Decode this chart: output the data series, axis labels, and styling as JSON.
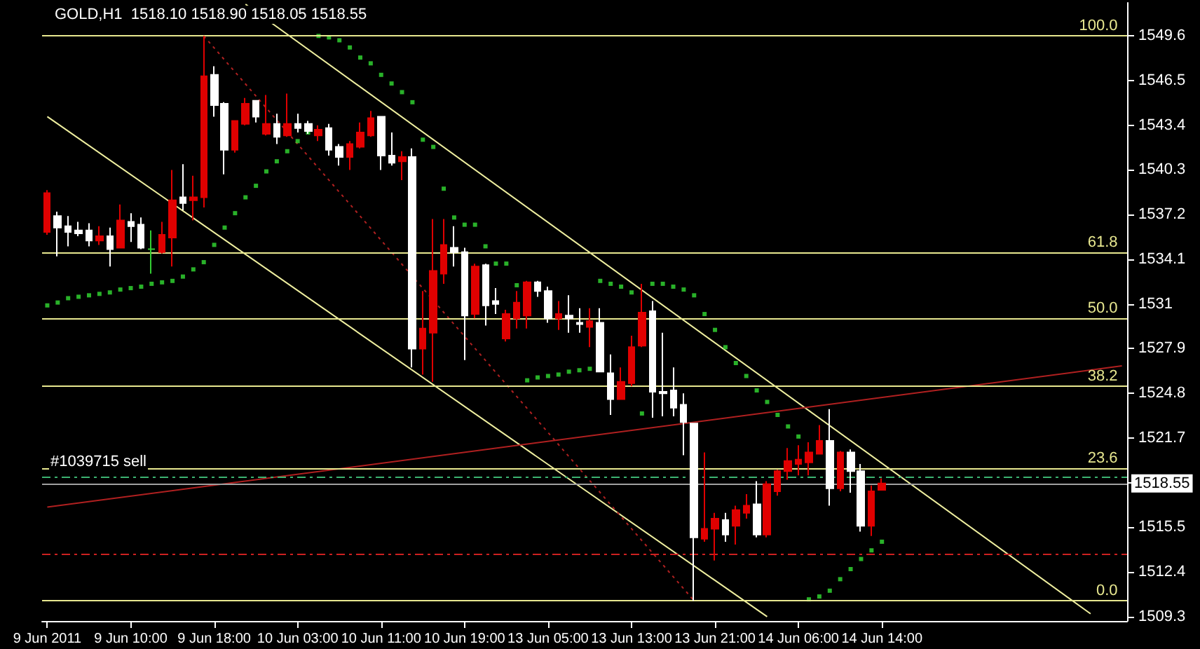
{
  "chart_data": {
    "type": "candlestick",
    "title": "GOLD,H1  1518.10 1518.90 1518.05 1518.55",
    "categories": [
      "9 Jun 2011",
      null,
      null,
      null,
      null,
      null,
      null,
      null,
      "9 Jun 10:00",
      null,
      null,
      null,
      null,
      null,
      null,
      null,
      "9 Jun 18:00",
      null,
      null,
      null,
      null,
      null,
      null,
      null,
      "10 Jun 03:00",
      null,
      null,
      null,
      null,
      null,
      null,
      null,
      "10 Jun 11:00",
      null,
      null,
      null,
      null,
      null,
      null,
      null,
      "10 Jun 19:00",
      null,
      null,
      null,
      null,
      null,
      null,
      null,
      "13 Jun 05:00",
      null,
      null,
      null,
      null,
      null,
      null,
      null,
      "13 Jun 13:00",
      null,
      null,
      null,
      null,
      null,
      null,
      null,
      "13 Jun 21:00",
      null,
      null,
      null,
      null,
      null,
      null,
      null,
      "14 Jun 06:00",
      null,
      null,
      null,
      null,
      null,
      null,
      null,
      "14 Jun 14:00",
      null,
      null,
      null,
      null,
      null,
      null,
      null,
      null,
      null,
      null,
      null,
      null,
      null,
      null,
      null,
      null,
      null,
      null,
      null,
      null,
      null,
      null,
      null
    ],
    "ohlc": [
      [
        1536.0,
        1538.9,
        1535.8,
        1538.7
      ],
      [
        1537.1,
        1537.4,
        1534.3,
        1536.3
      ],
      [
        1536.4,
        1537.1,
        1535.0,
        1536.0
      ],
      [
        1536.1,
        1536.7,
        1535.7,
        1535.9
      ],
      [
        1536.1,
        1536.6,
        1535.0,
        1535.4
      ],
      [
        1535.4,
        1536.4,
        1535.1,
        1535.7
      ],
      [
        1535.7,
        1536.3,
        1533.6,
        1534.8
      ],
      [
        1534.9,
        1537.9,
        1534.9,
        1536.8
      ],
      [
        1536.7,
        1537.3,
        1535.3,
        1536.4
      ],
      [
        1536.5,
        1537.0,
        1534.8,
        1534.9
      ],
      [
        1534.8,
        1536.1,
        1533.1,
        1534.8
      ],
      [
        1534.6,
        1536.7,
        1534.5,
        1535.8
      ],
      [
        1535.6,
        1540.3,
        1533.6,
        1538.2
      ],
      [
        1538.4,
        1540.7,
        1537.5,
        1538.0
      ],
      [
        1538.2,
        1539.9,
        1536.8,
        1538.4
      ],
      [
        1538.4,
        1549.6,
        1537.7,
        1546.8
      ],
      [
        1546.9,
        1547.5,
        1544.0,
        1544.8
      ],
      [
        1544.9,
        1545.0,
        1540.0,
        1541.7
      ],
      [
        1541.7,
        1543.7,
        1541.5,
        1543.7
      ],
      [
        1543.5,
        1545.3,
        1543.4,
        1544.9
      ],
      [
        1545.1,
        1545.1,
        1543.6,
        1544.0
      ],
      [
        1542.8,
        1545.5,
        1542.7,
        1543.5
      ],
      [
        1543.5,
        1544.2,
        1542.1,
        1542.6
      ],
      [
        1542.7,
        1545.6,
        1542.6,
        1543.5
      ],
      [
        1543.5,
        1544.2,
        1542.9,
        1543.2
      ],
      [
        1543.5,
        1543.7,
        1542.8,
        1543.0
      ],
      [
        1542.7,
        1543.4,
        1542.3,
        1543.1
      ],
      [
        1543.2,
        1543.5,
        1541.3,
        1541.7
      ],
      [
        1541.9,
        1542.1,
        1540.6,
        1541.2
      ],
      [
        1541.2,
        1542.3,
        1540.3,
        1542.1
      ],
      [
        1541.9,
        1543.6,
        1541.8,
        1542.9
      ],
      [
        1542.7,
        1544.4,
        1542.6,
        1543.9
      ],
      [
        1544.0,
        1544.0,
        1540.3,
        1541.3
      ],
      [
        1541.3,
        1542.9,
        1540.6,
        1540.8
      ],
      [
        1540.9,
        1541.6,
        1539.6,
        1541.2
      ],
      [
        1541.2,
        1541.8,
        1526.6,
        1527.9
      ],
      [
        1527.9,
        1531.9,
        1526.1,
        1529.3
      ],
      [
        1529.0,
        1536.9,
        1525.6,
        1533.3
      ],
      [
        1533.1,
        1536.9,
        1532.4,
        1535.1
      ],
      [
        1534.9,
        1536.4,
        1533.6,
        1534.6
      ],
      [
        1534.6,
        1534.9,
        1527.1,
        1530.2
      ],
      [
        1530.3,
        1533.8,
        1530.0,
        1533.6
      ],
      [
        1533.7,
        1533.8,
        1529.5,
        1530.9
      ],
      [
        1531.2,
        1532.1,
        1530.3,
        1531.0
      ],
      [
        1528.6,
        1530.6,
        1528.4,
        1530.3
      ],
      [
        1530.0,
        1531.9,
        1529.3,
        1531.1
      ],
      [
        1530.2,
        1532.6,
        1529.3,
        1532.5
      ],
      [
        1532.5,
        1532.6,
        1531.5,
        1531.9
      ],
      [
        1531.9,
        1532.2,
        1529.7,
        1530.0
      ],
      [
        1530.0,
        1531.2,
        1529.2,
        1530.3
      ],
      [
        1530.2,
        1531.6,
        1529.0,
        1530.0
      ],
      [
        1529.7,
        1530.7,
        1529.0,
        1529.6
      ],
      [
        1529.4,
        1530.7,
        1528.0,
        1529.8
      ],
      [
        1529.7,
        1530.7,
        1526.3,
        1526.3
      ],
      [
        1526.2,
        1527.5,
        1523.3,
        1524.4
      ],
      [
        1524.4,
        1526.6,
        1524.4,
        1525.6
      ],
      [
        1525.5,
        1528.8,
        1525.3,
        1528.0
      ],
      [
        1528.1,
        1532.4,
        1528.0,
        1530.4
      ],
      [
        1530.5,
        1531.2,
        1523.1,
        1524.9
      ],
      [
        1524.9,
        1529.0,
        1523.2,
        1524.8
      ],
      [
        1525.0,
        1526.6,
        1523.2,
        1523.8
      ],
      [
        1524.0,
        1524.8,
        1520.5,
        1522.8
      ],
      [
        1522.7,
        1522.7,
        1510.4,
        1514.8
      ],
      [
        1514.7,
        1520.7,
        1514.5,
        1515.4
      ],
      [
        1515.4,
        1516.5,
        1513.2,
        1516.1
      ],
      [
        1516.0,
        1516.5,
        1514.5,
        1515.0
      ],
      [
        1515.6,
        1517.0,
        1514.3,
        1516.7
      ],
      [
        1516.5,
        1517.8,
        1516.1,
        1517.0
      ],
      [
        1517.1,
        1518.7,
        1514.8,
        1515.0
      ],
      [
        1515.0,
        1518.7,
        1514.8,
        1518.5
      ],
      [
        1518.0,
        1519.5,
        1517.7,
        1519.4
      ],
      [
        1519.4,
        1521.0,
        1518.8,
        1520.1
      ],
      [
        1519.9,
        1521.2,
        1519.1,
        1520.2
      ],
      [
        1520.0,
        1521.4,
        1519.1,
        1520.7
      ],
      [
        1520.6,
        1522.6,
        1520.6,
        1521.5
      ],
      [
        1521.5,
        1523.7,
        1517.0,
        1518.2
      ],
      [
        1518.2,
        1520.8,
        1518.0,
        1520.7
      ],
      [
        1520.7,
        1520.9,
        1517.9,
        1519.4
      ],
      [
        1519.4,
        1519.9,
        1515.2,
        1515.6
      ],
      [
        1515.6,
        1518.4,
        1514.9,
        1518.0
      ],
      [
        1518.1,
        1518.9,
        1518.05,
        1518.55
      ],
      null,
      null,
      null,
      null,
      null,
      null,
      null,
      null,
      null,
      null,
      null,
      null,
      null,
      null,
      null,
      null,
      null,
      null,
      null,
      null,
      null,
      null,
      null
    ],
    "colors": [
      "#e00000",
      "#ffffff",
      "#ffffff",
      "#ffffff",
      "#ffffff",
      "#e00000",
      "#ffffff",
      "#e00000",
      "#ffffff",
      "#ffffff",
      "#33cc33",
      "#e00000",
      "#e00000",
      "#ffffff",
      "#e00000",
      "#e00000",
      "#ffffff",
      "#ffffff",
      "#e00000",
      "#e00000",
      "#ffffff",
      "#e00000",
      "#ffffff",
      "#e00000",
      "#ffffff",
      "#ffffff",
      "#e00000",
      "#ffffff",
      "#ffffff",
      "#e00000",
      "#e00000",
      "#e00000",
      "#ffffff",
      "#ffffff",
      "#e00000",
      "#ffffff",
      "#e00000",
      "#e00000",
      "#e00000",
      "#ffffff",
      "#ffffff",
      "#e00000",
      "#ffffff",
      "#ffffff",
      "#e00000",
      "#e00000",
      "#e00000",
      "#ffffff",
      "#ffffff",
      "#e00000",
      "#ffffff",
      "#ffffff",
      "#e00000",
      "#ffffff",
      "#ffffff",
      "#e00000",
      "#e00000",
      "#e00000",
      "#ffffff",
      "#ffffff",
      "#ffffff",
      "#ffffff",
      "#ffffff",
      "#e00000",
      "#e00000",
      "#ffffff",
      "#e00000",
      "#e00000",
      "#ffffff",
      "#e00000",
      "#e00000",
      "#e00000",
      "#e00000",
      "#e00000",
      "#e00000",
      "#ffffff",
      "#e00000",
      "#ffffff",
      "#ffffff",
      "#e00000",
      "#e00000",
      null,
      null,
      null,
      null,
      null,
      null,
      null,
      null,
      null,
      null,
      null,
      null,
      null,
      null,
      null,
      null,
      null,
      null,
      null,
      null,
      null,
      null,
      null
    ],
    "series": [
      {
        "type": "scatter",
        "color": "#33dd33",
        "marker": "square",
        "values": [
          1530.9,
          1531.1,
          1531.4,
          1531.5,
          1531.6,
          1531.7,
          1531.8,
          1532.0,
          1532.1,
          1532.2,
          1532.4,
          1532.5,
          1532.6,
          1532.9,
          1533.4,
          1533.9,
          1535.1,
          1536.3,
          1537.3,
          1538.4,
          1539.2,
          1540.2,
          1540.9,
          1541.6,
          1542.3,
          1542.9,
          1549.6,
          1549.5,
          1549.3,
          1548.8,
          1548.1,
          1547.7,
          1546.9,
          1546.3,
          1545.7,
          1545.0,
          1542.4,
          1541.9,
          1539.0,
          1537.0,
          1536.5,
          1536.5,
          1535.0,
          1533.8,
          1533.8,
          1532.3,
          1525.7,
          1525.9,
          1526.0,
          1526.1,
          1526.3,
          1526.4,
          1526.5,
          1532.6,
          1532.4,
          1532.2,
          1531.8,
          1523.4,
          1532.4,
          1532.4,
          1532.2,
          1532.0,
          1531.6,
          1530.3,
          1529.2,
          1528.0,
          1526.9,
          1526.0,
          1525.0,
          1524.2,
          1523.3,
          1522.5,
          1521.8,
          1510.5,
          1510.7,
          1511.1,
          1511.9,
          1512.6,
          1513.3,
          1513.9,
          1514.5,
          null,
          null,
          null,
          null,
          null,
          null,
          null,
          null,
          null,
          null,
          null,
          null,
          null,
          null,
          null,
          null,
          null,
          null,
          null,
          null,
          null,
          null,
          null
        ]
      },
      {
        "type": "line",
        "color": "#f0f0a0",
        "line_style": "solid",
        "values": [
          null,
          null,
          null,
          null,
          null,
          null,
          null,
          null,
          null,
          null,
          null,
          null,
          null,
          null,
          null,
          null,
          null,
          null,
          null,
          1551.8,
          null,
          null,
          null,
          null,
          null,
          null,
          null,
          null,
          null,
          null,
          null,
          null,
          null,
          null,
          null,
          null,
          null,
          null,
          null,
          null,
          null,
          null,
          null,
          null,
          null,
          null,
          null,
          null,
          null,
          null,
          null,
          null,
          null,
          null,
          null,
          null,
          null,
          null,
          null,
          null,
          null,
          null,
          null,
          null,
          null,
          null,
          null,
          null,
          null,
          null,
          null,
          null,
          null,
          null,
          null,
          null,
          null,
          null,
          null,
          null,
          null,
          null,
          null,
          null,
          null,
          null,
          null,
          null,
          null,
          null,
          null,
          null,
          null,
          null,
          null,
          null,
          null,
          null,
          null,
          null,
          1509.5,
          null,
          null,
          null
        ]
      },
      {
        "type": "line",
        "color": "#f0f0a0",
        "line_style": "solid",
        "values": [
          1544.0,
          null,
          null,
          null,
          null,
          null,
          null,
          null,
          null,
          null,
          null,
          null,
          null,
          null,
          null,
          null,
          null,
          null,
          null,
          null,
          null,
          null,
          null,
          null,
          null,
          null,
          null,
          null,
          null,
          null,
          null,
          null,
          null,
          null,
          null,
          null,
          null,
          null,
          null,
          null,
          null,
          null,
          null,
          null,
          null,
          null,
          null,
          null,
          null,
          null,
          null,
          null,
          null,
          null,
          null,
          null,
          null,
          null,
          null,
          null,
          null,
          null,
          null,
          null,
          null,
          null,
          null,
          null,
          null,
          1509.3,
          null,
          null,
          null,
          null,
          null,
          null,
          null,
          null,
          null,
          null,
          null,
          null,
          null,
          null,
          null,
          null,
          null,
          null,
          null,
          null,
          null,
          null,
          null,
          null,
          null,
          null,
          null,
          null,
          null,
          null,
          null,
          null,
          null,
          null
        ]
      },
      {
        "type": "line",
        "color": "#b02020",
        "line_style": "dotted",
        "values": [
          null,
          null,
          null,
          null,
          null,
          null,
          null,
          null,
          null,
          null,
          null,
          null,
          null,
          null,
          null,
          1549.6,
          null,
          null,
          null,
          null,
          null,
          null,
          null,
          null,
          null,
          null,
          null,
          null,
          null,
          null,
          null,
          null,
          null,
          null,
          null,
          null,
          null,
          null,
          null,
          null,
          null,
          null,
          null,
          null,
          null,
          null,
          null,
          null,
          null,
          null,
          null,
          null,
          null,
          null,
          null,
          null,
          null,
          null,
          null,
          null,
          null,
          null,
          1510.4,
          null,
          null,
          null,
          null,
          null,
          null,
          null,
          null,
          null,
          null,
          null,
          null,
          null,
          null,
          null,
          null,
          null,
          null,
          null,
          null,
          null,
          null,
          null,
          null,
          null,
          null,
          null,
          null,
          null,
          null,
          null,
          null,
          null,
          null,
          null,
          null,
          null,
          null,
          null,
          null,
          null
        ]
      },
      {
        "type": "line",
        "color": "#b02020",
        "line_style": "solid",
        "values": [
          1516.9,
          null,
          null,
          null,
          null,
          null,
          null,
          null,
          null,
          null,
          null,
          null,
          null,
          null,
          null,
          null,
          null,
          null,
          null,
          null,
          null,
          null,
          null,
          null,
          null,
          null,
          null,
          null,
          null,
          null,
          null,
          null,
          null,
          null,
          null,
          null,
          null,
          null,
          null,
          null,
          null,
          null,
          null,
          null,
          null,
          null,
          null,
          null,
          null,
          null,
          null,
          null,
          null,
          null,
          null,
          null,
          null,
          null,
          null,
          null,
          null,
          null,
          null,
          null,
          null,
          null,
          null,
          null,
          null,
          null,
          null,
          null,
          null,
          null,
          null,
          null,
          null,
          null,
          null,
          null,
          null,
          null,
          null,
          null,
          null,
          null,
          null,
          null,
          null,
          null,
          null,
          null,
          null,
          null,
          null,
          null,
          null,
          null,
          null,
          null,
          null,
          null,
          null,
          1526.7
        ]
      }
    ],
    "ylim": [
      1509.0,
      1551.9
    ],
    "yticks": [
      1549.6,
      1546.5,
      1543.4,
      1540.3,
      1537.2,
      1534.1,
      1531.0,
      1527.9,
      1524.8,
      1521.7,
      {
        "value": 1518.6,
        "label": null
      },
      1515.5,
      1512.4,
      1509.3
    ],
    "ref_lines": [
      {
        "axis": "y",
        "value": 1549.6,
        "color": "#e8e890"
      },
      {
        "axis": "y",
        "value": 1534.6,
        "color": "#e8e890"
      },
      {
        "axis": "y",
        "value": 1530.0,
        "color": "#e8e890"
      },
      {
        "axis": "y",
        "value": 1525.3,
        "color": "#e8e890"
      },
      {
        "axis": "y",
        "value": 1519.6,
        "color": "#e8e890"
      },
      {
        "axis": "y",
        "value": 1510.4,
        "color": "#e8e890"
      },
      {
        "axis": "y",
        "value": 1519.0,
        "label": "#1039715 sell",
        "color": "#3cb371",
        "line_style": "dashed"
      },
      {
        "axis": "y",
        "value": 1513.6,
        "color": "#cc2020",
        "line_style": "dashed"
      },
      {
        "axis": "y",
        "value": 1518.55,
        "label": "1518.55",
        "color": "#a0a0a0"
      }
    ],
    "annotations": [
      {
        "text": "100.0",
        "y": 1549.6
      },
      {
        "text": "61.8",
        "y": 1534.6
      },
      {
        "text": "50.0",
        "y": 1530.0
      },
      {
        "text": "38.2",
        "y": 1525.3
      },
      {
        "text": "23.6",
        "y": 1519.6
      },
      {
        "text": "0.0",
        "y": 1510.4
      }
    ],
    "grid": false
  }
}
